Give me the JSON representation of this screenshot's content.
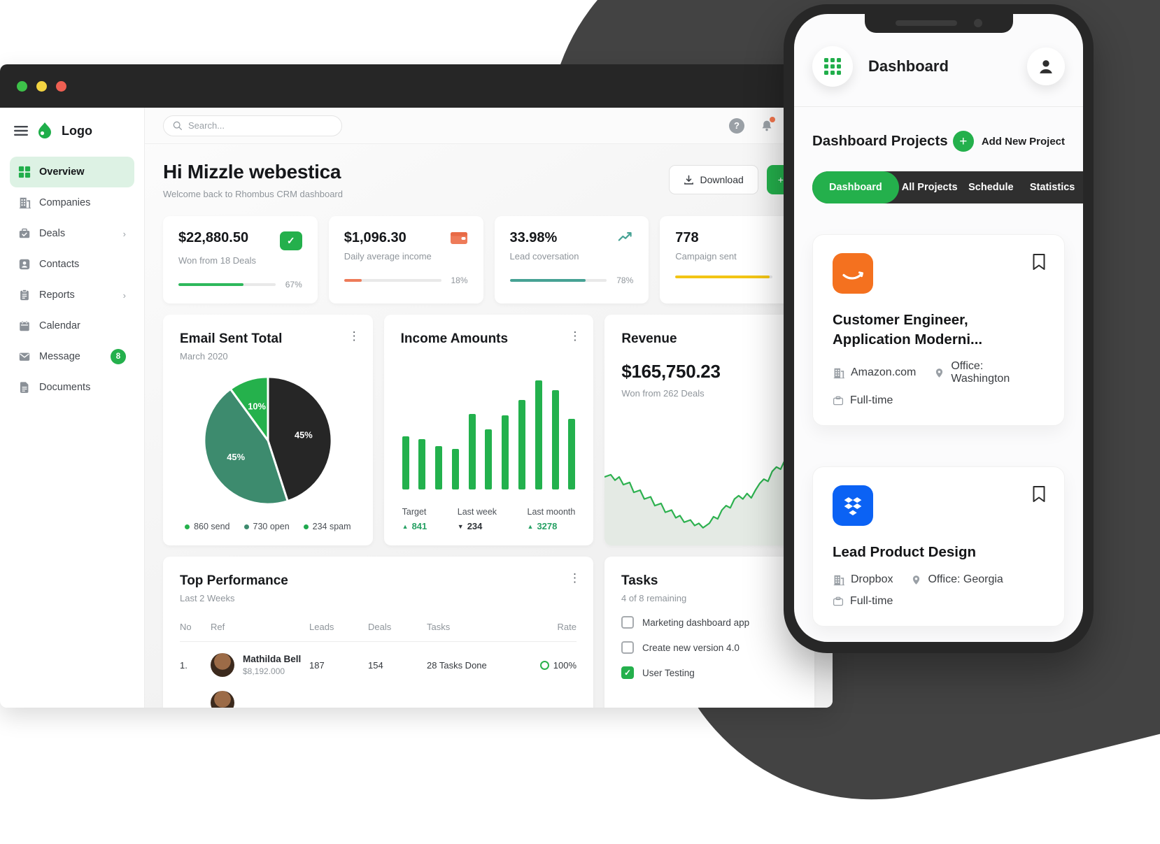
{
  "colors": {
    "primary_green": "#24b04c",
    "progress_green": "#2eb85c",
    "salmon": "#ee7b59",
    "teal": "#46a294",
    "yellow": "#f3c515",
    "pie_black": "#262626",
    "pie_dark_green": "#3d8b6e",
    "pie_bright_green": "#25b14c",
    "amazon_orange": "#f4711f",
    "dropbox_blue": "#0b62f4"
  },
  "window": {
    "search_placeholder": "Search..."
  },
  "sidebar": {
    "logo_label": "Logo",
    "items": [
      {
        "label": "Overview",
        "active": true
      },
      {
        "label": "Companies"
      },
      {
        "label": "Deals",
        "chevron": true
      },
      {
        "label": "Contacts"
      },
      {
        "label": "Reports",
        "chevron": true
      },
      {
        "label": "Calendar"
      },
      {
        "label": "Message",
        "badge": "8"
      },
      {
        "label": "Documents"
      }
    ]
  },
  "header": {
    "greeting": "Hi Mizzle webestica",
    "subtitle": "Welcome back to Rhombus CRM dashboard",
    "download_label": "Download",
    "add_label": "+ Add"
  },
  "stats": [
    {
      "value": "$22,880.50",
      "label": "Won from 18 Deals",
      "pct": "67%",
      "progress": 67,
      "color": "#2eb85c",
      "icon": "briefcase-check"
    },
    {
      "value": "$1,096.30",
      "label": "Daily average income",
      "pct": "18%",
      "progress": 18,
      "color": "#ee7b59",
      "icon": "wallet"
    },
    {
      "value": "33.98%",
      "label": "Lead coversation",
      "pct": "78%",
      "progress": 78,
      "color": "#46a294",
      "icon": "trend-up"
    },
    {
      "value": "778",
      "label": "Campaign sent",
      "pct": "",
      "progress": 97,
      "color": "#f3c515",
      "icon": ""
    }
  ],
  "performance_card": {
    "title": "Top Performance",
    "subtitle": "Last 2 Weeks",
    "headers": [
      "No",
      "Ref",
      "Leads",
      "Deals",
      "Tasks",
      "Rate"
    ],
    "rows": [
      {
        "no": "1.",
        "name": "Mathilda Bell",
        "amount": "$8,192.000",
        "leads": "187",
        "deals": "154",
        "tasks": "28 Tasks Done",
        "rate": "100%"
      }
    ]
  },
  "tasks_card": {
    "title": "Tasks",
    "subtitle": "4 of 8 remaining",
    "items": [
      {
        "label": "Marketing dashboard app",
        "checked": false
      },
      {
        "label": "Create new version 4.0",
        "checked": false
      },
      {
        "label": "User Testing",
        "checked": true
      }
    ]
  },
  "phone": {
    "app_title": "Dashboard",
    "section_title": "Dashboard Projects",
    "add_button": "Add New Project",
    "tabs": [
      {
        "label": "Dashboard",
        "active": true
      },
      {
        "label": "All Projects"
      },
      {
        "label": "Schedule"
      },
      {
        "label": "Statistics"
      }
    ],
    "jobs": [
      {
        "logo": "amazon",
        "title": "Customer Engineer, Application Moderni...",
        "company": "Amazon.com",
        "office": "Office: Washington",
        "type": "Full-time"
      },
      {
        "logo": "dropbox",
        "title": "Lead Product Design",
        "company": "Dropbox",
        "office": "Office: Georgia",
        "type": "Full-time"
      }
    ]
  },
  "chart_data": [
    {
      "type": "pie",
      "title": "Email Sent Total",
      "subtitle": "March 2020",
      "slices": [
        {
          "label": "45%",
          "value": 45,
          "color": "#262626"
        },
        {
          "label": "45%",
          "value": 45,
          "color": "#3d8b6e"
        },
        {
          "label": "10%",
          "value": 10,
          "color": "#25b14c"
        }
      ],
      "legend": [
        {
          "text": "860 send",
          "color": "#25b14c"
        },
        {
          "text": "730 open",
          "color": "#3d8b6e"
        },
        {
          "text": "234 spam",
          "color": "#1fa94e"
        }
      ]
    },
    {
      "type": "bar",
      "title": "Income Amounts",
      "values": [
        49,
        46,
        40,
        37,
        69,
        55,
        68,
        82,
        100,
        91,
        65
      ],
      "color": "#23b14d",
      "footer": [
        {
          "label": "Target",
          "value": "841",
          "direction": "up"
        },
        {
          "label": "Last week",
          "value": "234",
          "direction": "down"
        },
        {
          "label": "Last moonth",
          "value": "3278",
          "direction": "up"
        }
      ]
    },
    {
      "type": "line",
      "title": "Revenue",
      "value": "$165,750.23",
      "subtitle": "Won from 262 Deals",
      "color": "#2db14f",
      "ylim": [
        0,
        100
      ],
      "points": [
        [
          0,
          38
        ],
        [
          3,
          36
        ],
        [
          5,
          41
        ],
        [
          7,
          38
        ],
        [
          9,
          45
        ],
        [
          12,
          43
        ],
        [
          14,
          52
        ],
        [
          17,
          50
        ],
        [
          19,
          58
        ],
        [
          22,
          56
        ],
        [
          24,
          64
        ],
        [
          27,
          62
        ],
        [
          29,
          70
        ],
        [
          32,
          68
        ],
        [
          34,
          75
        ],
        [
          36,
          73
        ],
        [
          38,
          79
        ],
        [
          41,
          77
        ],
        [
          43,
          82
        ],
        [
          45,
          80
        ],
        [
          47,
          84
        ],
        [
          50,
          80
        ],
        [
          52,
          74
        ],
        [
          54,
          76
        ],
        [
          56,
          68
        ],
        [
          58,
          64
        ],
        [
          60,
          66
        ],
        [
          62,
          58
        ],
        [
          64,
          55
        ],
        [
          66,
          58
        ],
        [
          68,
          53
        ],
        [
          70,
          57
        ],
        [
          72,
          50
        ],
        [
          74,
          44
        ],
        [
          76,
          40
        ],
        [
          78,
          42
        ],
        [
          80,
          33
        ],
        [
          82,
          29
        ],
        [
          84,
          31
        ],
        [
          86,
          23
        ],
        [
          88,
          20
        ],
        [
          90,
          23
        ],
        [
          92,
          15
        ],
        [
          94,
          12
        ],
        [
          96,
          14
        ],
        [
          98,
          7
        ],
        [
          100,
          3
        ]
      ]
    }
  ]
}
